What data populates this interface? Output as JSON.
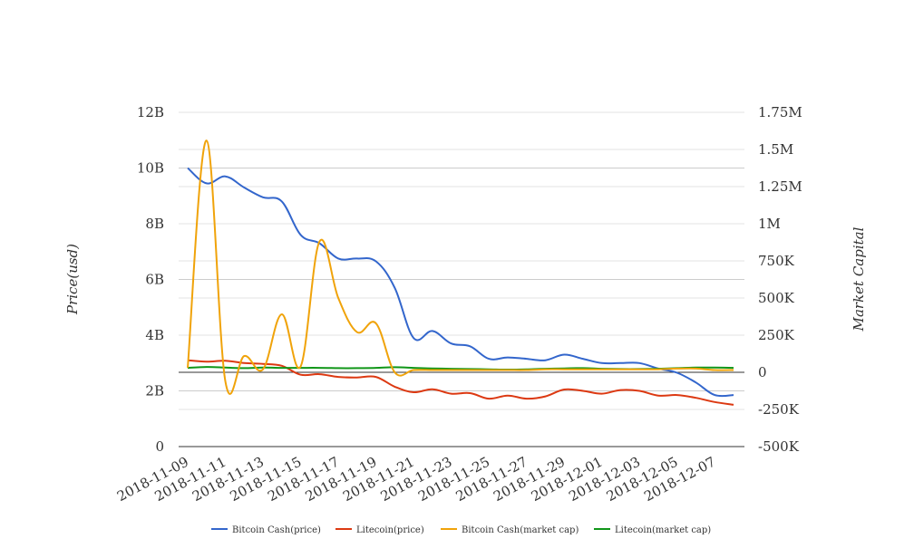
{
  "chart_data": {
    "type": "line",
    "x": [
      "2018-11-09",
      "2018-11-10",
      "2018-11-11",
      "2018-11-12",
      "2018-11-13",
      "2018-11-14",
      "2018-11-15",
      "2018-11-16",
      "2018-11-17",
      "2018-11-18",
      "2018-11-19",
      "2018-11-20",
      "2018-11-21",
      "2018-11-22",
      "2018-11-23",
      "2018-11-24",
      "2018-11-25",
      "2018-11-26",
      "2018-11-27",
      "2018-11-28",
      "2018-11-29",
      "2018-11-30",
      "2018-12-01",
      "2018-12-02",
      "2018-12-03",
      "2018-12-04",
      "2018-12-05",
      "2018-12-06",
      "2018-12-07",
      "2018-12-08"
    ],
    "x_tick_labels": [
      "2018-11-09",
      "2018-11-11",
      "2018-11-13",
      "2018-11-15",
      "2018-11-17",
      "2018-11-19",
      "2018-11-21",
      "2018-11-23",
      "2018-11-25",
      "2018-11-27",
      "2018-11-29",
      "2018-12-01",
      "2018-12-03",
      "2018-12-05",
      "2018-12-07"
    ],
    "y_left": {
      "label": "Price(usd)",
      "range": [
        0,
        12000000000
      ],
      "ticks": [
        0,
        2000000000,
        4000000000,
        6000000000,
        8000000000,
        10000000000,
        12000000000
      ],
      "tick_labels": [
        "0",
        "2B",
        "4B",
        "6B",
        "8B",
        "10B",
        "12B"
      ]
    },
    "y_right": {
      "label": "Market Capital",
      "range": [
        -500000,
        1750000
      ],
      "ticks": [
        -500000,
        -250000,
        0,
        250000,
        500000,
        750000,
        1000000,
        1250000,
        1500000,
        1750000
      ],
      "tick_labels": [
        "-500K",
        "-250K",
        "0",
        "250K",
        "500K",
        "750K",
        "1M",
        "1.25M",
        "1.5M",
        "1.75M"
      ]
    },
    "grid": true,
    "legend_position": "bottom",
    "series": [
      {
        "name": "Bitcoin Cash(price)",
        "axis": "left",
        "color": "#3366cc",
        "values": [
          10000000000,
          9450000000,
          9700000000,
          9300000000,
          8950000000,
          8800000000,
          7600000000,
          7300000000,
          6750000000,
          6750000000,
          6650000000,
          5700000000,
          3900000000,
          4150000000,
          3700000000,
          3600000000,
          3150000000,
          3200000000,
          3150000000,
          3100000000,
          3300000000,
          3150000000,
          3000000000,
          3000000000,
          3000000000,
          2800000000,
          2650000000,
          2300000000,
          1850000000,
          1850000000
        ]
      },
      {
        "name": "Litecoin(price)",
        "axis": "left",
        "color": "#dc3912",
        "values": [
          3100000000,
          3050000000,
          3080000000,
          3000000000,
          2970000000,
          2900000000,
          2580000000,
          2600000000,
          2500000000,
          2480000000,
          2500000000,
          2150000000,
          1950000000,
          2060000000,
          1900000000,
          1920000000,
          1720000000,
          1830000000,
          1720000000,
          1800000000,
          2050000000,
          2000000000,
          1900000000,
          2030000000,
          2000000000,
          1830000000,
          1850000000,
          1750000000,
          1600000000,
          1500000000
        ]
      },
      {
        "name": "Bitcoin Cash(market cap)",
        "axis": "right",
        "color": "#f0a30a",
        "values": [
          30000,
          1560000,
          -60000,
          110000,
          20000,
          390000,
          40000,
          880000,
          500000,
          270000,
          330000,
          0,
          15000,
          15000,
          15000,
          15000,
          15000,
          15000,
          15000,
          20000,
          20000,
          20000,
          20000,
          20000,
          20000,
          20000,
          25000,
          25000,
          15000,
          15000
        ]
      },
      {
        "name": "Litecoin(market cap)",
        "axis": "right",
        "color": "#109618",
        "values": [
          30000,
          36000,
          32000,
          28000,
          32000,
          30000,
          30000,
          30000,
          28000,
          28000,
          30000,
          34000,
          30000,
          26000,
          24000,
          22000,
          20000,
          18000,
          20000,
          24000,
          26000,
          28000,
          24000,
          22000,
          22000,
          24000,
          28000,
          32000,
          32000,
          30000
        ]
      }
    ]
  }
}
